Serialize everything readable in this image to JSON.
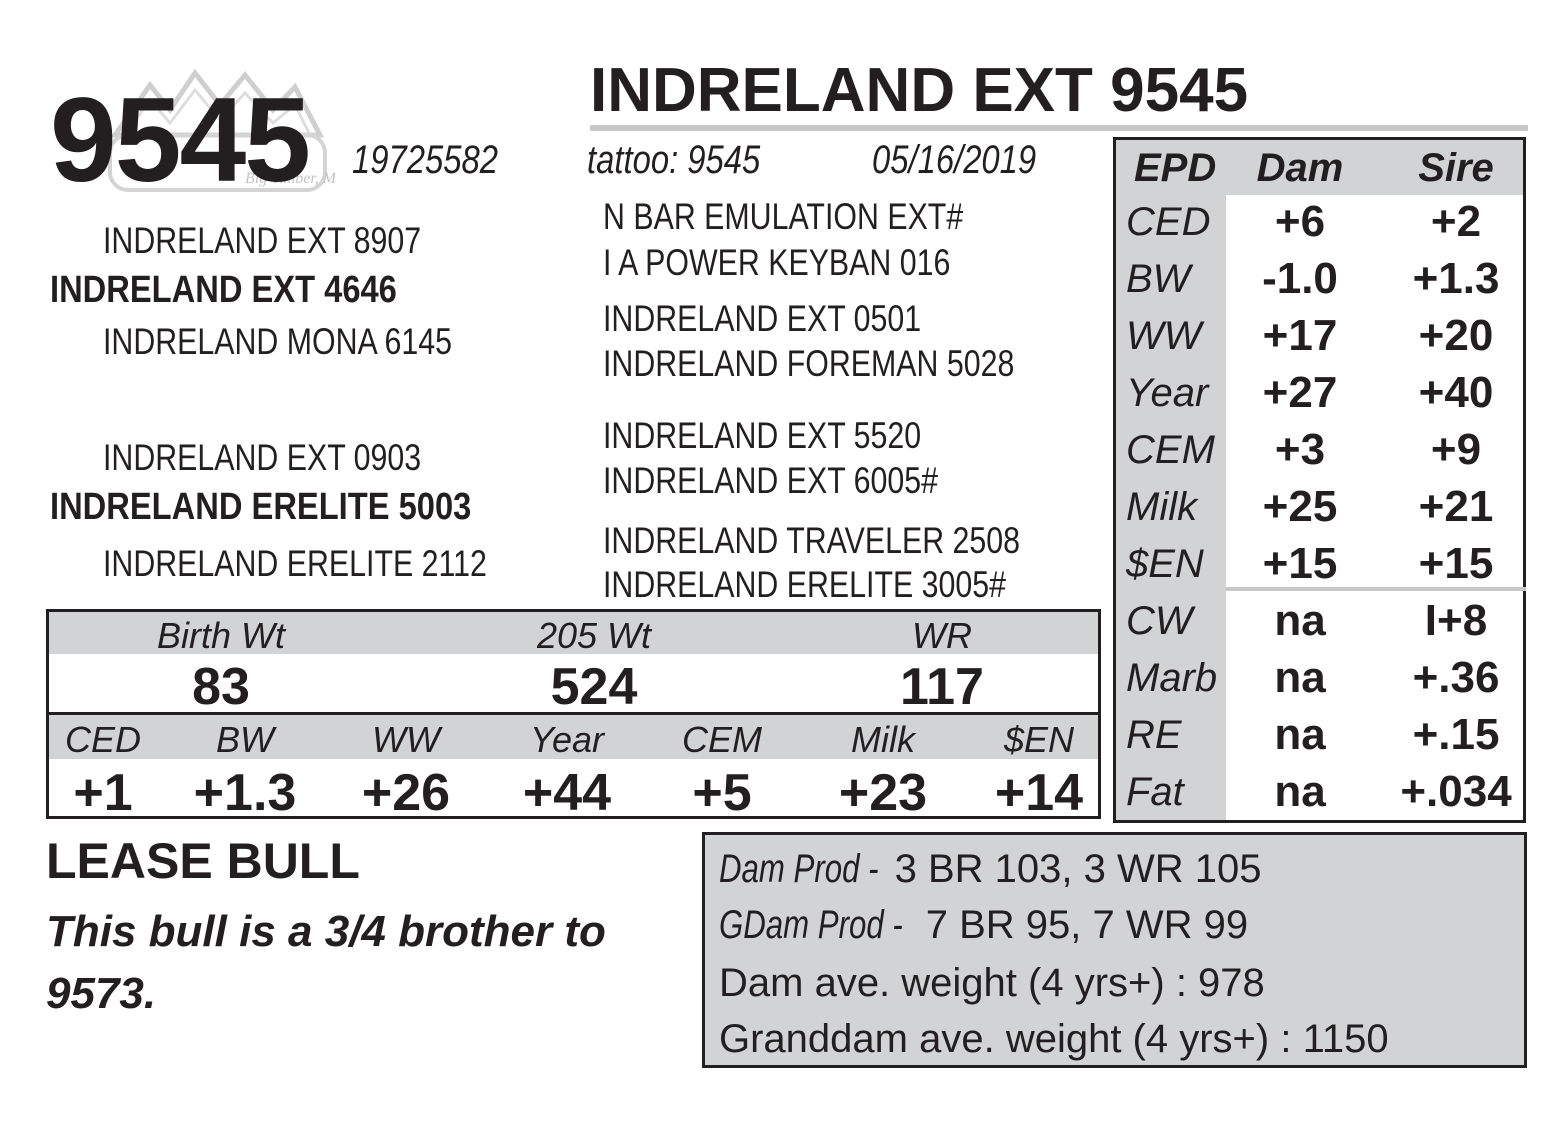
{
  "lot_number": "9545",
  "title": "INDRELAND EXT 9545",
  "registration": "19725582",
  "tattoo": "tattoo: 9545",
  "birth_date": "05/16/2019",
  "logo": {
    "icon": "ranch-mountain-logo",
    "text": "Big Timber, MT"
  },
  "pedigree": {
    "sire_side": {
      "sire": "INDRELAND EXT 4646",
      "sire_sire": "INDRELAND EXT 8907",
      "sire_dam": "INDRELAND MONA 6145",
      "sss_pair": [
        "N BAR EMULATION EXT#",
        "I A POWER KEYBAN 016"
      ],
      "sds_pair": [
        "INDRELAND EXT 0501",
        "INDRELAND FOREMAN 5028"
      ]
    },
    "dam_side": {
      "dam": "INDRELAND ERELITE 5003",
      "dam_sire": "INDRELAND EXT 0903",
      "dam_dam": "INDRELAND ERELITE 2112",
      "dss_pair": [
        "INDRELAND EXT 5520",
        "INDRELAND EXT 6005#"
      ],
      "dds_pair": [
        "INDRELAND TRAVELER 2508",
        "INDRELAND ERELITE 3005#"
      ]
    }
  },
  "weights": {
    "headers": [
      "Birth Wt",
      "205 Wt",
      "WR"
    ],
    "values": [
      "83",
      "524",
      "117"
    ]
  },
  "epd_row": {
    "headers": [
      "CED",
      "BW",
      "WW",
      "Year",
      "CEM",
      "Milk",
      "$EN"
    ],
    "values": [
      "+1",
      "+1.3",
      "+26",
      "+44",
      "+5",
      "+23",
      "+14"
    ]
  },
  "epd_table": {
    "headers": [
      "EPD",
      "Dam",
      "Sire"
    ],
    "rows": [
      {
        "label": "CED",
        "dam": "+6",
        "sire": "+2"
      },
      {
        "label": "BW",
        "dam": "-1.0",
        "sire": "+1.3"
      },
      {
        "label": "WW",
        "dam": "+17",
        "sire": "+20"
      },
      {
        "label": "Year",
        "dam": "+27",
        "sire": "+40"
      },
      {
        "label": "CEM",
        "dam": "+3",
        "sire": "+9"
      },
      {
        "label": "Milk",
        "dam": "+25",
        "sire": "+21"
      },
      {
        "label": "$EN",
        "dam": "+15",
        "sire": "+15"
      },
      {
        "label": "CW",
        "dam": "na",
        "sire": "I+8"
      },
      {
        "label": "Marb",
        "dam": "na",
        "sire": "+.36"
      },
      {
        "label": "RE",
        "dam": "na",
        "sire": "+.15"
      },
      {
        "label": "Fat",
        "dam": "na",
        "sire": "+.034"
      }
    ]
  },
  "lease": "LEASE BULL",
  "note_lines": [
    "This bull is a 3/4 brother to",
    "9573."
  ],
  "production": {
    "dam_prod_label": "Dam Prod -",
    "dam_prod_value": "3 BR 103, 3 WR 105",
    "gdam_prod_label": "GDam Prod -",
    "gdam_prod_value": "7 BR 95, 7 WR 99",
    "dam_avg": "Dam ave. weight (4 yrs+) : 978",
    "granddam_avg": "Granddam ave. weight (4 yrs+) : 1150"
  }
}
